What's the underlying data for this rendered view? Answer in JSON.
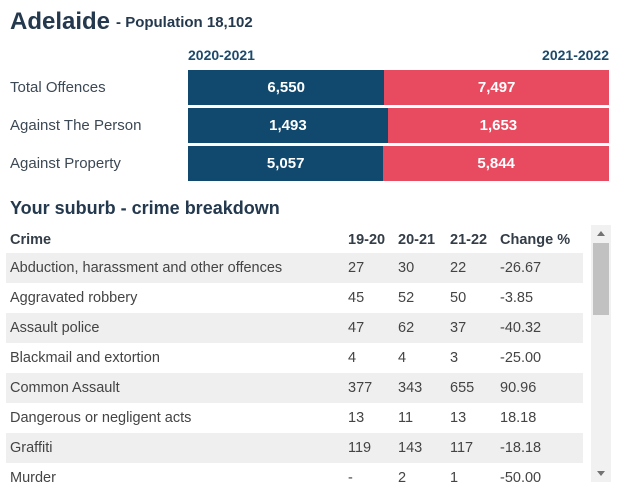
{
  "header": {
    "title": "Adelaide",
    "subtitle": "- Population 18,102"
  },
  "comparison": {
    "col_left": "2020-2021",
    "col_right": "2021-2022",
    "rows": [
      {
        "label": "Total Offences",
        "left": "6,550",
        "right": "7,497",
        "left_pct": 46.63,
        "right_pct": 53.37
      },
      {
        "label": "Against The Person",
        "left": "1,493",
        "right": "1,653",
        "left_pct": 47.46,
        "right_pct": 52.54
      },
      {
        "label": "Against Property",
        "left": "5,057",
        "right": "5,844",
        "left_pct": 46.39,
        "right_pct": 53.61
      }
    ]
  },
  "breakdown": {
    "title": "Your suburb - crime breakdown",
    "columns": [
      "Crime",
      "19-20",
      "20-21",
      "21-22",
      "Change %"
    ],
    "rows": [
      [
        "Abduction, harassment and other offences",
        "27",
        "30",
        "22",
        "-26.67"
      ],
      [
        "Aggravated robbery",
        "45",
        "52",
        "50",
        "-3.85"
      ],
      [
        "Assault police",
        "47",
        "62",
        "37",
        "-40.32"
      ],
      [
        "Blackmail and extortion",
        "4",
        "4",
        "3",
        "-25.00"
      ],
      [
        "Common Assault",
        "377",
        "343",
        "655",
        "90.96"
      ],
      [
        "Dangerous or negligent acts",
        "13",
        "11",
        "13",
        "18.18"
      ],
      [
        "Graffiti",
        "119",
        "143",
        "117",
        "-18.18"
      ],
      [
        "Murder",
        "-",
        "2",
        "1",
        "-50.00"
      ]
    ]
  },
  "colors": {
    "bar_2020_2021": "#11496e",
    "bar_2021_2022": "#e84b60",
    "heading_navy": "#24394e",
    "year_header_blue": "#1c4a6b",
    "row_stripe_gray": "#efefef",
    "scrollbar_track": "#f1f1f1",
    "scrollbar_thumb": "#c1c1c1"
  },
  "chart_data": [
    {
      "type": "bar",
      "subtype": "horizontal-paired-comparison",
      "title": "Adelaide - Population 18,102",
      "categories": [
        "Total Offences",
        "Against The Person",
        "Against Property"
      ],
      "series": [
        {
          "name": "2020-2021",
          "values": [
            6550,
            1493,
            5057
          ],
          "color": "#11496e"
        },
        {
          "name": "2021-2022",
          "values": [
            7497,
            1653,
            5844
          ],
          "color": "#e84b60"
        }
      ],
      "legend_position": "top",
      "grid": false,
      "value_labels": "inside-white"
    },
    {
      "type": "table",
      "title": "Your suburb - crime breakdown",
      "columns": [
        "Crime",
        "19-20",
        "20-21",
        "21-22",
        "Change %"
      ],
      "rows": [
        [
          "Abduction, harassment and other offences",
          27,
          30,
          22,
          -26.67
        ],
        [
          "Aggravated robbery",
          45,
          52,
          50,
          -3.85
        ],
        [
          "Assault police",
          47,
          62,
          37,
          -40.32
        ],
        [
          "Blackmail and extortion",
          4,
          4,
          3,
          -25.0
        ],
        [
          "Common Assault",
          377,
          343,
          655,
          90.96
        ],
        [
          "Dangerous or negligent acts",
          13,
          11,
          13,
          18.18
        ],
        [
          "Graffiti",
          119,
          143,
          117,
          -18.18
        ],
        [
          "Murder",
          null,
          2,
          1,
          -50.0
        ]
      ]
    }
  ]
}
